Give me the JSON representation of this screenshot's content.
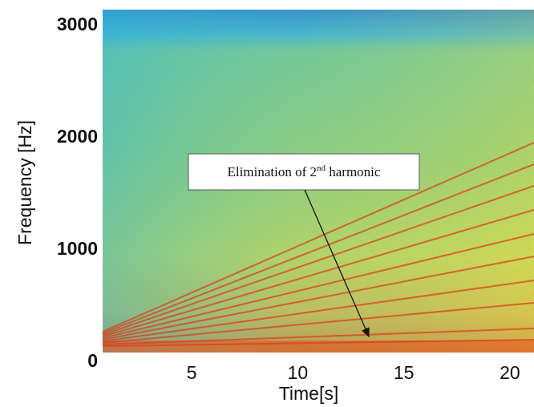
{
  "chart_data": {
    "type": "spectrogram",
    "x_label": "Time[s]",
    "y_label": "Frequency [Hz]",
    "xlim": [
      0.8,
      21.1
    ],
    "xticks": [
      5,
      10,
      15,
      20
    ],
    "ylim": [
      0,
      3150
    ],
    "yticks": [
      0,
      1000,
      2000,
      3000
    ],
    "grid": false,
    "annotation": {
      "text": "Elimination of 2",
      "superscript": "nd",
      "text_after": " harmonic"
    }
  }
}
